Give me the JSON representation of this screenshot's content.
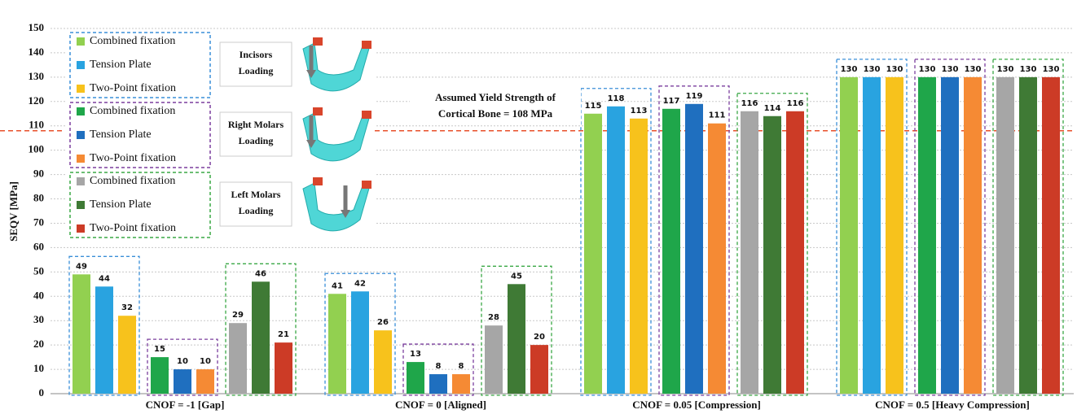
{
  "chart_data": {
    "type": "bar",
    "y_label": "SEQV [MPa]",
    "categories": [
      "CNOF = -1 [Gap]",
      "CNOF = 0 [Aligned]",
      "CNOF = 0.05 [Compression]",
      "CNOF = 0.5 [Heavy Compression]"
    ],
    "series": [
      {
        "name": "Combined fixation",
        "color": "#92d050",
        "values": [
          49,
          41,
          115,
          130
        ]
      },
      {
        "name": "Tension Plate",
        "color": "#29a3e0",
        "values": [
          44,
          42,
          118,
          130
        ]
      },
      {
        "name": "Two-Point fixation",
        "color": "#f7c21c",
        "values": [
          32,
          26,
          113,
          130
        ]
      },
      {
        "name": "Combined fixation",
        "color": "#1fa64a",
        "values": [
          15,
          13,
          117,
          130
        ]
      },
      {
        "name": "Tension Plate",
        "color": "#1f6fbf",
        "values": [
          10,
          8,
          119,
          130
        ]
      },
      {
        "name": "Two-Point fixation",
        "color": "#f58a34",
        "values": [
          10,
          8,
          111,
          130
        ]
      },
      {
        "name": "Combined fixation",
        "color": "#a6a6a6",
        "values": [
          29,
          28,
          116,
          130
        ]
      },
      {
        "name": "Tension Plate",
        "color": "#3f7a35",
        "values": [
          46,
          45,
          114,
          130
        ]
      },
      {
        "name": "Two-Point fixation",
        "color": "#cc3b26",
        "values": [
          21,
          20,
          116,
          130
        ]
      }
    ],
    "legend_groups": [
      {
        "label": [
          "Incisors",
          "Loading"
        ],
        "color": "#3a8fd8"
      },
      {
        "label": [
          "Right Molars",
          "Loading"
        ],
        "color": "#7b3f9e"
      },
      {
        "label": [
          "Left Molars",
          "Loading"
        ],
        "color": "#3aa845"
      }
    ],
    "reference_line": {
      "value": 108,
      "color": "#e8502a"
    },
    "annotation": [
      "Assumed Yield Strength of",
      "Cortical Bone = 108 MPa"
    ],
    "ylim": [
      0,
      150
    ],
    "yticks": [
      0,
      10,
      20,
      30,
      40,
      50,
      60,
      70,
      80,
      90,
      100,
      110,
      120,
      130,
      140,
      150
    ],
    "grid": true
  }
}
